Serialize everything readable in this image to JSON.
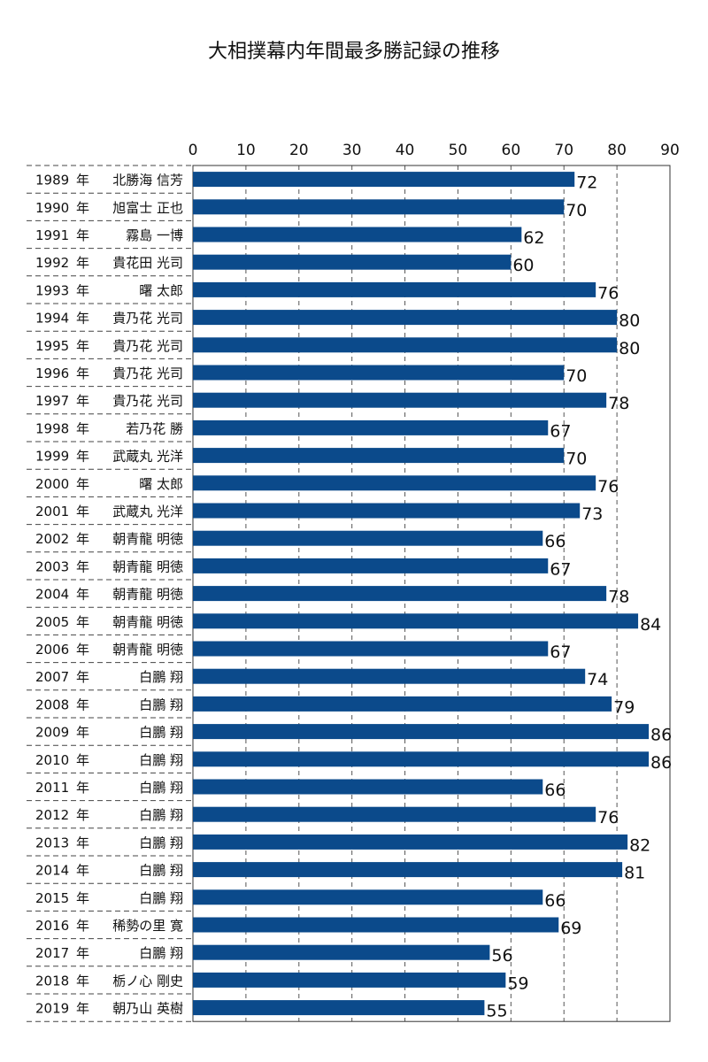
{
  "chart_data": {
    "type": "bar",
    "orientation": "horizontal",
    "title": "大相撲幕内年間最多勝記録の推移",
    "xlim": [
      0,
      90
    ],
    "xticks": [
      0,
      10,
      20,
      30,
      40,
      50,
      60,
      70,
      80,
      90
    ],
    "grid": true,
    "bar_color": "#0b4a8b",
    "categories": [
      {
        "year": "1989",
        "unit": "年",
        "name": "北勝海 信芳"
      },
      {
        "year": "1990",
        "unit": "年",
        "name": "旭富士 正也"
      },
      {
        "year": "1991",
        "unit": "年",
        "name": "霧島 一博"
      },
      {
        "year": "1992",
        "unit": "年",
        "name": "貴花田 光司"
      },
      {
        "year": "1993",
        "unit": "年",
        "name": "曙 太郎"
      },
      {
        "year": "1994",
        "unit": "年",
        "name": "貴乃花 光司"
      },
      {
        "year": "1995",
        "unit": "年",
        "name": "貴乃花 光司"
      },
      {
        "year": "1996",
        "unit": "年",
        "name": "貴乃花 光司"
      },
      {
        "year": "1997",
        "unit": "年",
        "name": "貴乃花 光司"
      },
      {
        "year": "1998",
        "unit": "年",
        "name": "若乃花 勝"
      },
      {
        "year": "1999",
        "unit": "年",
        "name": "武蔵丸 光洋"
      },
      {
        "year": "2000",
        "unit": "年",
        "name": "曙 太郎"
      },
      {
        "year": "2001",
        "unit": "年",
        "name": "武蔵丸 光洋"
      },
      {
        "year": "2002",
        "unit": "年",
        "name": "朝青龍 明徳"
      },
      {
        "year": "2003",
        "unit": "年",
        "name": "朝青龍 明徳"
      },
      {
        "year": "2004",
        "unit": "年",
        "name": "朝青龍 明徳"
      },
      {
        "year": "2005",
        "unit": "年",
        "name": "朝青龍 明徳"
      },
      {
        "year": "2006",
        "unit": "年",
        "name": "朝青龍 明徳"
      },
      {
        "year": "2007",
        "unit": "年",
        "name": "白鵬 翔"
      },
      {
        "year": "2008",
        "unit": "年",
        "name": "白鵬 翔"
      },
      {
        "year": "2009",
        "unit": "年",
        "name": "白鵬 翔"
      },
      {
        "year": "2010",
        "unit": "年",
        "name": "白鵬 翔"
      },
      {
        "year": "2011",
        "unit": "年",
        "name": "白鵬 翔"
      },
      {
        "year": "2012",
        "unit": "年",
        "name": "白鵬 翔"
      },
      {
        "year": "2013",
        "unit": "年",
        "name": "白鵬 翔"
      },
      {
        "year": "2014",
        "unit": "年",
        "name": "白鵬 翔"
      },
      {
        "year": "2015",
        "unit": "年",
        "name": "白鵬 翔"
      },
      {
        "year": "2016",
        "unit": "年",
        "name": "稀勢の里 寛"
      },
      {
        "year": "2017",
        "unit": "年",
        "name": "白鵬 翔"
      },
      {
        "year": "2018",
        "unit": "年",
        "name": "栃ノ心 剛史"
      },
      {
        "year": "2019",
        "unit": "年",
        "name": "朝乃山 英樹"
      }
    ],
    "values": [
      72,
      70,
      62,
      60,
      76,
      80,
      80,
      70,
      78,
      67,
      70,
      76,
      73,
      66,
      67,
      78,
      84,
      67,
      74,
      79,
      86,
      86,
      66,
      76,
      82,
      81,
      66,
      69,
      56,
      59,
      55
    ]
  }
}
